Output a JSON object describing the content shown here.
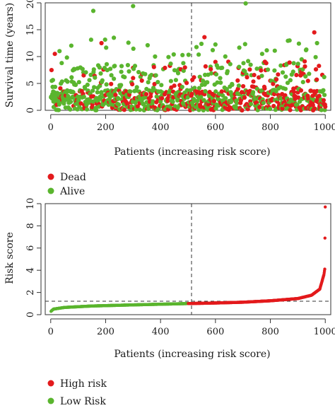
{
  "chart_data": [
    {
      "type": "scatter",
      "title": "",
      "xlabel": "Patients (increasing risk score)",
      "ylabel": "Survival time (years)",
      "xlim": [
        -20,
        1020
      ],
      "ylim": [
        0,
        20
      ],
      "xticks": [
        0,
        200,
        400,
        600,
        800,
        1000
      ],
      "yticks": [
        0,
        5,
        10,
        15,
        20
      ],
      "cutoff_x": 500,
      "n_points": 1000,
      "legend_position": "bottom-left, below plot",
      "series": [
        {
          "name": "Dead",
          "color": "#e31a1c",
          "points_sample": [
            [
              15,
              10.5
            ],
            [
              120,
              6.5
            ],
            [
              185,
              12.5
            ],
            [
              300,
              6
            ],
            [
              530,
              3.5
            ],
            [
              560,
              13.6
            ],
            [
              600,
              9
            ],
            [
              700,
              7
            ],
            [
              800,
              5.5
            ],
            [
              960,
              14.5
            ]
          ]
        },
        {
          "name": "Alive",
          "color": "#5ab52e",
          "points_sample": [
            [
              155,
              18.5
            ],
            [
              230,
              13.5
            ],
            [
              300,
              19.4
            ],
            [
              380,
              10
            ],
            [
              590,
              11.2
            ],
            [
              710,
              19.9
            ],
            [
              770,
              10.5
            ],
            [
              870,
              13
            ],
            [
              930,
              11.2
            ],
            [
              970,
              12.5
            ]
          ]
        }
      ],
      "legend": [
        "Dead",
        "Alive"
      ]
    },
    {
      "type": "scatter",
      "title": "",
      "xlabel": "Patients (increasing risk score)",
      "ylabel": "Risk score",
      "xlim": [
        -20,
        1020
      ],
      "ylim": [
        0,
        10
      ],
      "xticks": [
        0,
        200,
        400,
        600,
        800,
        1000
      ],
      "yticks": [
        0,
        2,
        4,
        6,
        8,
        10
      ],
      "cutoff_x": 500,
      "cutoff_y": 1.0,
      "legend_position": "bottom-left, below plot",
      "series": [
        {
          "name": "High risk",
          "color": "#e31a1c",
          "x_range": [
            501,
            1000
          ],
          "y_points": [
            [
              501,
              1.0
            ],
            [
              600,
              1.05
            ],
            [
              700,
              1.12
            ],
            [
              800,
              1.25
            ],
            [
              900,
              1.45
            ],
            [
              950,
              1.75
            ],
            [
              980,
              2.3
            ],
            [
              995,
              3.6
            ],
            [
              998,
              4.1
            ],
            [
              1000,
              9.7
            ]
          ]
        },
        {
          "name": "Low Risk",
          "color": "#5ab52e",
          "x_range": [
            1,
            500
          ],
          "y_points": [
            [
              1,
              0.3
            ],
            [
              10,
              0.5
            ],
            [
              50,
              0.65
            ],
            [
              150,
              0.78
            ],
            [
              300,
              0.88
            ],
            [
              400,
              0.94
            ],
            [
              500,
              1.0
            ]
          ]
        }
      ],
      "legend": [
        "High risk",
        "Low Risk"
      ]
    }
  ]
}
